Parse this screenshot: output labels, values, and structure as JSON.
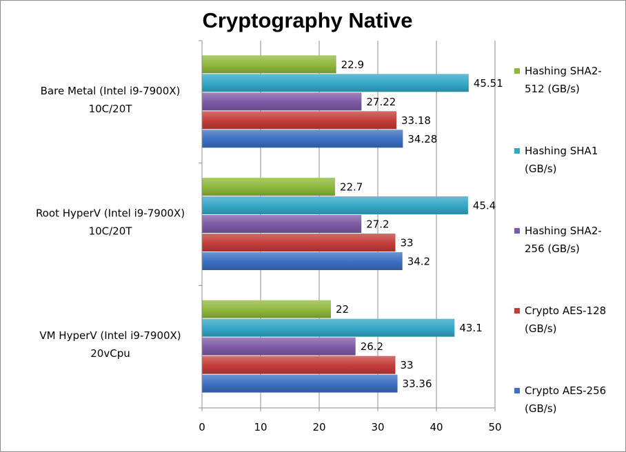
{
  "chart_data": {
    "type": "bar",
    "orientation": "horizontal",
    "title": "Cryptography Native",
    "xlim": [
      0,
      50
    ],
    "xticks": [
      0,
      10,
      20,
      30,
      40,
      50
    ],
    "grid": true,
    "legend_position": "right",
    "categories": [
      [
        "Bare Metal (Intel i9-7900X)",
        "10C/20T"
      ],
      [
        "Root HyperV (Intel i9-7900X)",
        "10C/20T"
      ],
      [
        "VM HyperV (Intel i9-7900X)",
        "20vCpu"
      ]
    ],
    "series": [
      {
        "name": "Crypto AES-256 (GB/s)",
        "legend_lines": [
          "Crypto AES-256",
          "(GB/s)"
        ],
        "color": "#3b6fc0",
        "values": [
          34.28,
          34.2,
          33.36
        ],
        "labels": [
          "34.28",
          "34.2",
          "33.36"
        ]
      },
      {
        "name": "Crypto AES-128 (GB/s)",
        "legend_lines": [
          "Crypto AES-128",
          "(GB/s)"
        ],
        "color": "#c33c38",
        "values": [
          33.18,
          33,
          33
        ],
        "labels": [
          "33.18",
          "33",
          "33"
        ]
      },
      {
        "name": "Hashing SHA2-256 (GB/s)",
        "legend_lines": [
          "Hashing SHA2-",
          "256 (GB/s)"
        ],
        "color": "#7d5aa5",
        "values": [
          27.22,
          27.2,
          26.2
        ],
        "labels": [
          "27.22",
          "27.2",
          "26.2"
        ]
      },
      {
        "name": "Hashing SHA1 (GB/s)",
        "legend_lines": [
          "Hashing SHA1",
          "(GB/s)"
        ],
        "color": "#33a7c6",
        "values": [
          45.51,
          45.4,
          43.1
        ],
        "labels": [
          "45.51",
          "45.4",
          "43.1"
        ]
      },
      {
        "name": "Hashing SHA2-512 (GB/s)",
        "legend_lines": [
          "Hashing SHA2-",
          "512 (GB/s)"
        ],
        "color": "#8fb73c",
        "values": [
          22.9,
          22.7,
          22
        ],
        "labels": [
          "22.9",
          "22.7",
          "22"
        ]
      }
    ]
  }
}
